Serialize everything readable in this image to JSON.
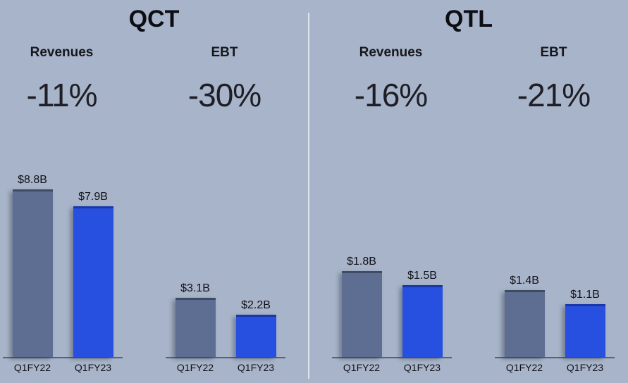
{
  "chart_data": [
    {
      "type": "bar",
      "segment": "QCT",
      "title": "Revenues",
      "change": "-11%",
      "categories": [
        "Q1FY22",
        "Q1FY23"
      ],
      "values": [
        8.8,
        7.9
      ],
      "value_labels": [
        "$8.8B",
        "$7.9B"
      ],
      "unit": "$B",
      "colors": [
        "#5e6e93",
        "#2750e0"
      ]
    },
    {
      "type": "bar",
      "segment": "QCT",
      "title": "EBT",
      "change": "-30%",
      "categories": [
        "Q1FY22",
        "Q1FY23"
      ],
      "values": [
        3.1,
        2.2
      ],
      "value_labels": [
        "$3.1B",
        "$2.2B"
      ],
      "unit": "$B",
      "colors": [
        "#5e6e93",
        "#2750e0"
      ]
    },
    {
      "type": "bar",
      "segment": "QTL",
      "title": "Revenues",
      "change": "-16%",
      "categories": [
        "Q1FY22",
        "Q1FY23"
      ],
      "values": [
        1.8,
        1.5
      ],
      "value_labels": [
        "$1.8B",
        "$1.5B"
      ],
      "unit": "$B",
      "colors": [
        "#5e6e93",
        "#2750e0"
      ]
    },
    {
      "type": "bar",
      "segment": "QTL",
      "title": "EBT",
      "change": "-21%",
      "categories": [
        "Q1FY22",
        "Q1FY23"
      ],
      "values": [
        1.4,
        1.1
      ],
      "value_labels": [
        "$1.4B",
        "$1.1B"
      ],
      "unit": "$B",
      "colors": [
        "#5e6e93",
        "#2750e0"
      ]
    }
  ],
  "segments": [
    {
      "title": "QCT"
    },
    {
      "title": "QTL"
    }
  ]
}
